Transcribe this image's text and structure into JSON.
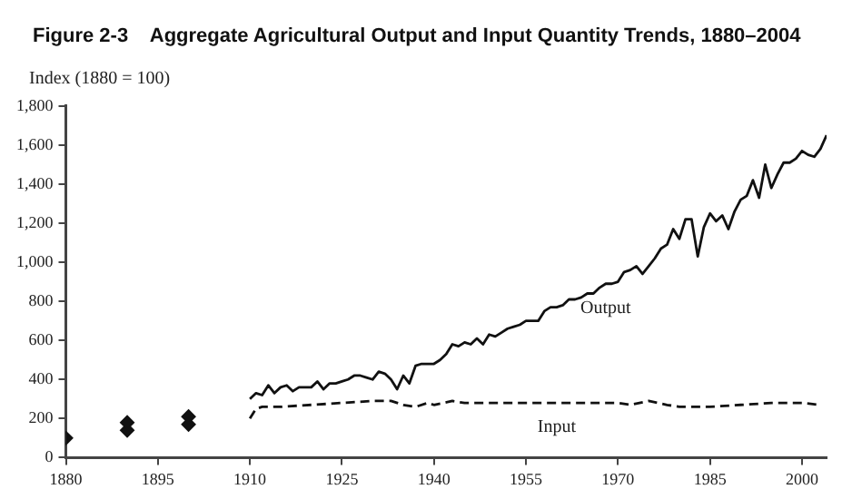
{
  "chart_data": {
    "type": "line",
    "title": "Figure 2-3    Aggregate Agricultural Output and Input Quantity Trends, 1880–2004",
    "ylabel": "Index (1880 = 100)",
    "xlim": [
      1880,
      2004
    ],
    "xticks": [
      1880,
      1895,
      1910,
      1925,
      1940,
      1955,
      1970,
      1985,
      2000
    ],
    "ylim": [
      0,
      1800
    ],
    "yticks": [
      0,
      200,
      400,
      600,
      800,
      {
        "value": 1000,
        "label": "1,000"
      },
      {
        "value": 1200,
        "label": "1,200"
      },
      {
        "value": 1400,
        "label": "1,400"
      },
      {
        "value": 1600,
        "label": "1,600"
      },
      {
        "value": 1800,
        "label": "1,800"
      }
    ],
    "grid": false,
    "legend": false,
    "series": [
      {
        "name": "Output",
        "color": "#111111",
        "line_style": "solid",
        "marker": "none",
        "x": [
          1910,
          1911,
          1912,
          1913,
          1914,
          1915,
          1916,
          1917,
          1918,
          1919,
          1920,
          1921,
          1922,
          1923,
          1924,
          1925,
          1926,
          1927,
          1928,
          1929,
          1930,
          1931,
          1932,
          1933,
          1934,
          1935,
          1936,
          1937,
          1938,
          1939,
          1940,
          1941,
          1942,
          1943,
          1944,
          1945,
          1946,
          1947,
          1948,
          1949,
          1950,
          1951,
          1952,
          1953,
          1954,
          1955,
          1956,
          1957,
          1958,
          1959,
          1960,
          1961,
          1962,
          1963,
          1964,
          1965,
          1966,
          1967,
          1968,
          1969,
          1970,
          1971,
          1972,
          1973,
          1974,
          1975,
          1976,
          1977,
          1978,
          1979,
          1980,
          1981,
          1982,
          1983,
          1984,
          1985,
          1986,
          1987,
          1988,
          1989,
          1990,
          1991,
          1992,
          1993,
          1994,
          1995,
          1996,
          1997,
          1998,
          1999,
          2000,
          2001,
          2002,
          2003,
          2004
        ],
        "values": [
          300,
          330,
          320,
          370,
          330,
          360,
          370,
          340,
          360,
          360,
          360,
          390,
          350,
          380,
          380,
          390,
          400,
          420,
          420,
          410,
          400,
          440,
          430,
          400,
          350,
          420,
          380,
          470,
          480,
          480,
          480,
          500,
          530,
          580,
          570,
          590,
          580,
          610,
          580,
          630,
          620,
          640,
          660,
          670,
          680,
          700,
          700,
          700,
          750,
          770,
          770,
          780,
          810,
          810,
          820,
          840,
          840,
          870,
          890,
          890,
          900,
          950,
          960,
          980,
          940,
          980,
          1020,
          1070,
          1090,
          1170,
          1120,
          1220,
          1220,
          1030,
          1180,
          1250,
          1210,
          1240,
          1170,
          1260,
          1320,
          1340,
          1420,
          1330,
          1500,
          1380,
          1450,
          1510,
          1510,
          1530,
          1570,
          1550,
          1540,
          1580,
          1650
        ]
      },
      {
        "name": "Input",
        "color": "#111111",
        "line_style": "dashed",
        "marker": "none",
        "x": [
          1910,
          1911,
          1912,
          1913,
          1915,
          1920,
          1925,
          1930,
          1933,
          1935,
          1937,
          1939,
          1940,
          1943,
          1945,
          1950,
          1955,
          1960,
          1965,
          1970,
          1972,
          1975,
          1978,
          1980,
          1985,
          1990,
          1995,
          2000,
          2003
        ],
        "values": [
          200,
          250,
          260,
          260,
          260,
          270,
          280,
          290,
          290,
          270,
          260,
          280,
          270,
          290,
          280,
          280,
          280,
          280,
          280,
          280,
          270,
          290,
          270,
          260,
          260,
          270,
          280,
          280,
          270
        ]
      },
      {
        "type": "scatter",
        "color": "#111111",
        "marker": "diamond",
        "x": [
          1880,
          1890,
          1900
        ],
        "values": [
          100,
          180,
          210
        ]
      },
      {
        "type": "scatter",
        "color": "#111111",
        "marker": "diamond",
        "x": [
          1890,
          1900
        ],
        "values": [
          140,
          170
        ]
      }
    ]
  }
}
